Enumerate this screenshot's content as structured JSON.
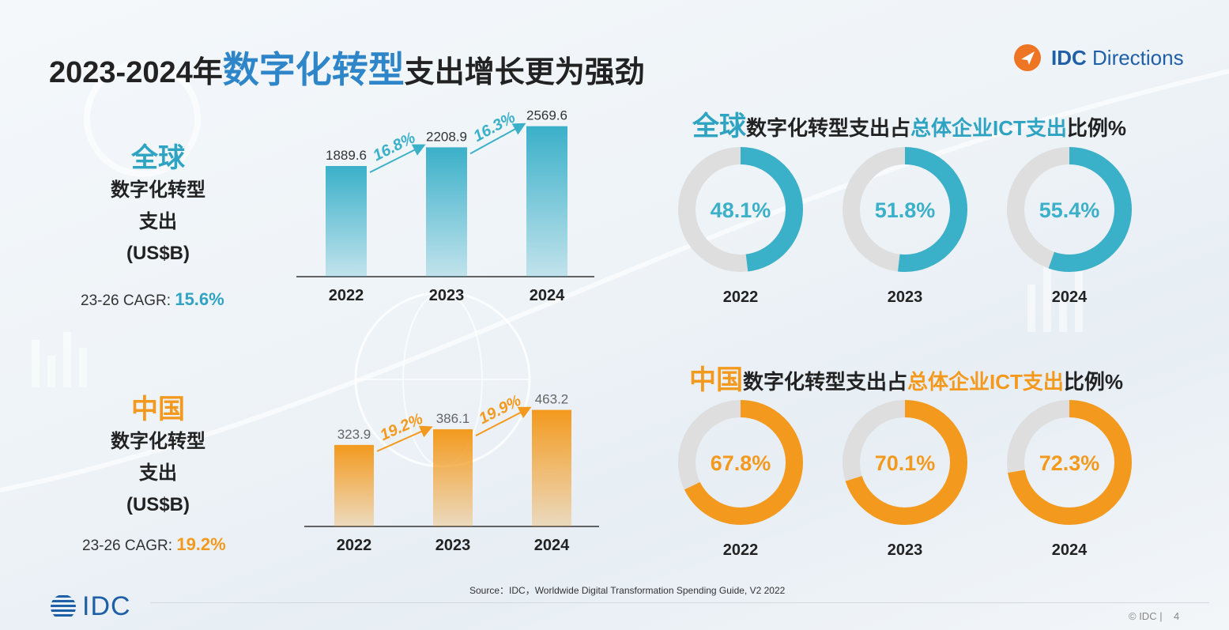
{
  "title": {
    "pre": "2023-2024年",
    "highlight": "数字化转型",
    "post": "支出增长更为强劲"
  },
  "logo": {
    "brand": "IDC",
    "product": "Directions"
  },
  "colors": {
    "global": "#3ab0c9",
    "china": "#f39a1e",
    "track": "#dedede"
  },
  "left_global": {
    "name": "全球",
    "sub1": "数字化转型",
    "sub2": "支出",
    "sub3": "(US$B)",
    "cagr_label": "23-26 CAGR: ",
    "cagr_value": "15.6%"
  },
  "left_china": {
    "name": "中国",
    "sub1": "数字化转型",
    "sub2": "支出",
    "sub3": "(US$B)",
    "cagr_label": "23-26 CAGR: ",
    "cagr_value": "19.2%"
  },
  "donut_titles": {
    "global": {
      "region": "全球",
      "a": "数字化转型支出占",
      "b": "总体企业ICT支出",
      "c": "比例%"
    },
    "china": {
      "region": "中国",
      "a": "数字化转型支出占",
      "b": "总体企业ICT支出",
      "c": "比例%"
    }
  },
  "chart_data": [
    {
      "type": "bar",
      "id": "global_spending",
      "categories": [
        "2022",
        "2023",
        "2024"
      ],
      "values": [
        1889.6,
        2208.9,
        2569.6
      ],
      "growth_labels": [
        "16.8%",
        "16.3%"
      ],
      "ylim": [
        0,
        2700
      ]
    },
    {
      "type": "bar",
      "id": "china_spending",
      "categories": [
        "2022",
        "2023",
        "2024"
      ],
      "values": [
        323.9,
        386.1,
        463.2
      ],
      "growth_labels": [
        "19.2%",
        "19.9%"
      ],
      "ylim": [
        0,
        490
      ]
    },
    {
      "type": "pie",
      "id": "global_share",
      "categories": [
        "2022",
        "2023",
        "2024"
      ],
      "values": [
        48.1,
        51.8,
        55.4
      ],
      "labels": [
        "48.1%",
        "51.8%",
        "55.4%"
      ]
    },
    {
      "type": "pie",
      "id": "china_share",
      "categories": [
        "2022",
        "2023",
        "2024"
      ],
      "values": [
        67.8,
        70.1,
        72.3
      ],
      "labels": [
        "67.8%",
        "70.1%",
        "72.3%"
      ]
    }
  ],
  "source": "Source：IDC，Worldwide Digital Transformation Spending Guide, V2 2022",
  "footer": {
    "copyright": "© IDC |",
    "page": "4"
  }
}
